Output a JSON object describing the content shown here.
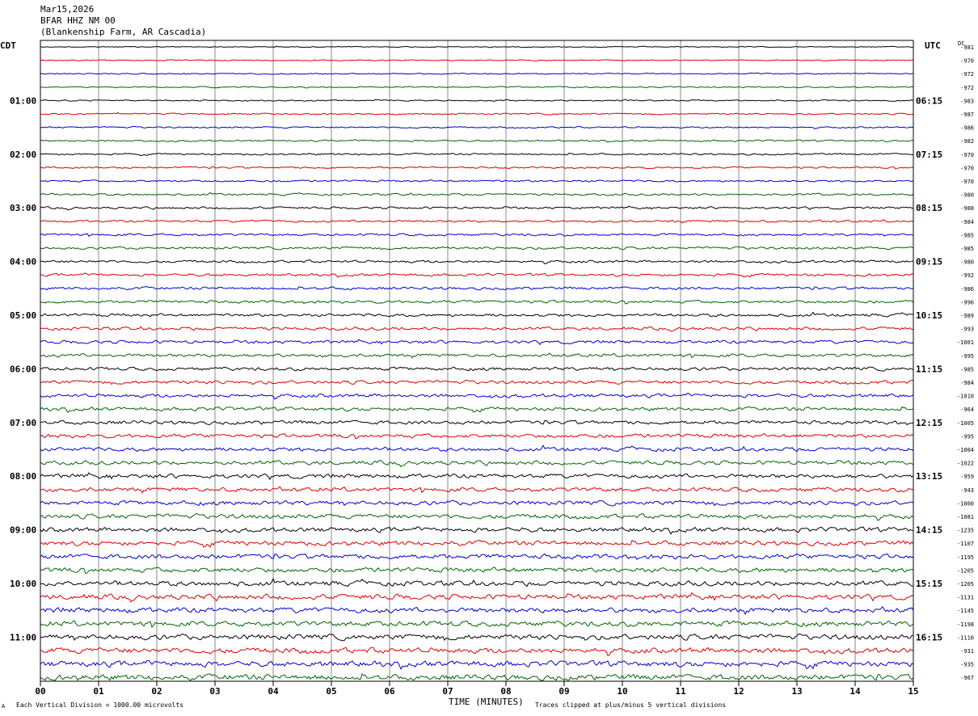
{
  "header": {
    "date": "Mar15,2026",
    "station": "BFAR HHZ NM 00",
    "location": "(Blankenship Farm, AR Cascadia)"
  },
  "left_tz": "CDT",
  "right_tz": "UTC",
  "dc_label": "DC",
  "footer": {
    "mark": "A",
    "scale_note": "Each Vertical Division = 1000.00 microvolts",
    "clip_note": "Traces clipped at plus/minus 5 vertical divisions"
  },
  "chart_data": {
    "type": "line",
    "xlabel": "TIME (MINUTES)",
    "xlim": [
      0,
      15
    ],
    "x_ticks": [
      "00",
      "01",
      "02",
      "03",
      "04",
      "05",
      "06",
      "07",
      "08",
      "09",
      "10",
      "11",
      "12",
      "13",
      "14",
      "15"
    ],
    "grid": true,
    "rows_per_hour": 4,
    "trace_colors": [
      "#000000",
      "#dd0000",
      "#0000cc",
      "#006600"
    ],
    "left_hour_labels": [
      "01:00",
      "02:00",
      "03:00",
      "04:00",
      "05:00",
      "06:00",
      "07:00",
      "08:00",
      "09:00",
      "10:00",
      "11:00"
    ],
    "right_hour_labels": [
      "06:15",
      "07:15",
      "08:15",
      "09:15",
      "10:15",
      "11:15",
      "12:15",
      "13:15",
      "14:15",
      "15:15",
      "16:15"
    ],
    "dc_offsets": [
      "-981",
      "-970",
      "-972",
      "-972",
      "-983",
      "-987",
      "-986",
      "-982",
      "-970",
      "-970",
      "-970",
      "-980",
      "-988",
      "-984",
      "-985",
      "-985",
      "-980",
      "-992",
      "-986",
      "-996",
      "-989",
      "-993",
      "-1001",
      "-995",
      "-985",
      "-984",
      "-1010",
      "-964",
      "-1005",
      "-995",
      "-1004",
      "-1022",
      "-959",
      "-943",
      "-1000",
      "-1081",
      "-1235",
      "-1107",
      "-1195",
      "-1205",
      "-1205",
      "-1131",
      "-1145",
      "-1198",
      "-1116",
      "-931",
      "-935",
      "-967"
    ]
  }
}
